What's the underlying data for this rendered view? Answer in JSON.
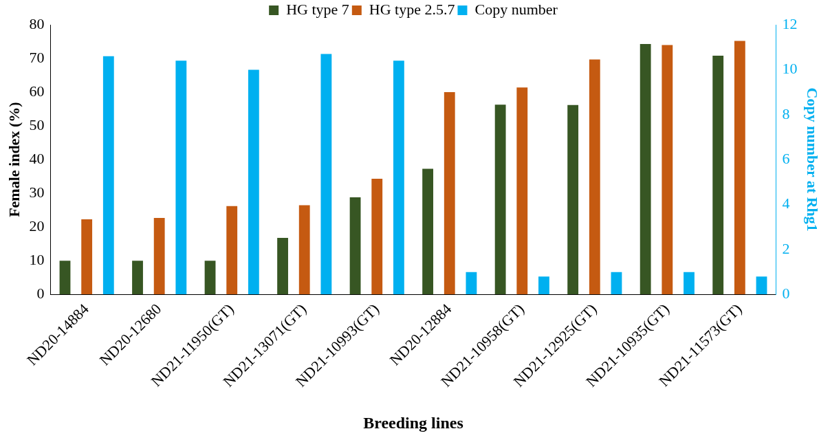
{
  "chart_data": {
    "type": "bar",
    "xlabel": "Breeding lines",
    "ylabel": "Female index (%)",
    "y2label": "Copy number at Rhg1",
    "categories": [
      "ND20-14884",
      "ND20-12680",
      "ND21-11950(GT)",
      "ND21-13071(GT)",
      "ND21-10993(GT)",
      "ND20-12884",
      "ND21-10958(GT)",
      "ND21-12925(GT)",
      "ND21-10935(GT)",
      "ND21-11573(GT)"
    ],
    "series": [
      {
        "name": "HG type 7",
        "color": "#375623",
        "values": [
          10,
          10,
          10,
          16.8,
          28.8,
          37.3,
          56.3,
          56.2,
          74.3,
          70.8
        ]
      },
      {
        "name": "HG type 2.5.7",
        "color": "#c55a11",
        "values": [
          22.3,
          22.7,
          26.2,
          26.5,
          34.3,
          60,
          61.4,
          69.7,
          74,
          75.2
        ]
      },
      {
        "name": "Copy number",
        "color": "#00b0f0",
        "axis": "y2",
        "values": [
          10.6,
          10.4,
          10,
          10.7,
          10.4,
          1,
          0.8,
          1,
          1,
          0.8
        ]
      }
    ],
    "ylim": [
      0,
      80
    ],
    "yticks": [
      0,
      10,
      20,
      30,
      40,
      50,
      60,
      70,
      80
    ],
    "y2lim": [
      0,
      12
    ],
    "y2ticks": [
      0,
      2,
      4,
      6,
      8,
      10,
      12
    ],
    "grid": false,
    "legend": "top"
  }
}
